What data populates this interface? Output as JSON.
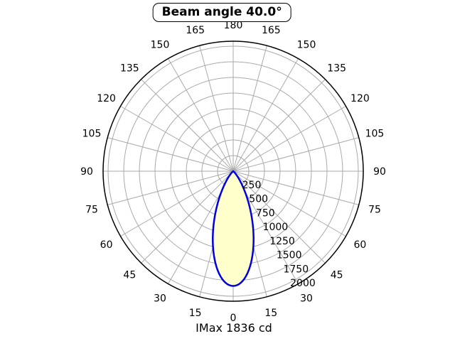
{
  "title": "Beam angle 40.0°",
  "footer": "IMax 1836 cd",
  "chart_data": {
    "type": "polar_beam",
    "title": "Beam angle 40.0°",
    "beam_angle_deg": 40.0,
    "imax_cd": 1836,
    "imax_label": "IMax 1836 cd",
    "angle_ticks_deg": [
      0,
      15,
      30,
      45,
      60,
      75,
      90,
      105,
      120,
      135,
      150,
      165,
      180
    ],
    "angle_tick_step_deg": 15,
    "angle_layout": "0 at bottom, 180 at top, mirrored left and right",
    "radial_ticks_cd": [
      250,
      500,
      750,
      1000,
      1250,
      1500,
      1750,
      2000
    ],
    "radial_max_cd": 2080,
    "radial_label_angle_deg": 26,
    "grid": true,
    "colors": {
      "beam_fill": "#ffffcc",
      "beam_stroke": "#0000e0",
      "grid_line": "#aaaaaa",
      "outer_circle": "#000000",
      "text": "#000000",
      "background": "#ffffff"
    }
  }
}
